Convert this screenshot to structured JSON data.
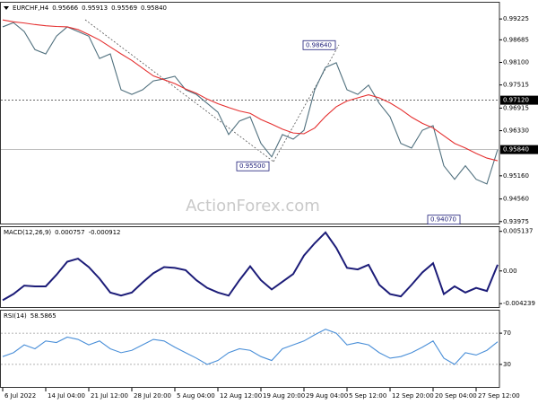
{
  "chart_data": [
    {
      "type": "line",
      "title": "EURCHF,H4",
      "header_values": [
        0.95666,
        0.95913,
        0.95569,
        {
          "value": 0.9584,
          "label": "0.95840"
        }
      ],
      "watermark": "ActionForex.com",
      "categories": [
        "6 Jul 2022",
        null,
        null,
        null,
        "14 Jul 04:00",
        null,
        null,
        null,
        "21 Jul 12:00",
        null,
        null,
        null,
        "28 Jul 20:00",
        null,
        null,
        null,
        "5 Aug 04:00",
        null,
        null,
        null,
        "12 Aug 12:00",
        null,
        null,
        null,
        "19 Aug 20:00",
        null,
        null,
        null,
        "29 Aug 04:00",
        null,
        null,
        null,
        "5 Sep 12:00",
        null,
        null,
        null,
        "12 Sep 20:00",
        null,
        null,
        null,
        "20 Sep 04:00",
        null,
        null,
        null,
        "27 Sep 12:00",
        null,
        null
      ],
      "series": [
        {
          "color": "#50707e",
          "values": [
            0.9902,
            0.9913,
            0.989,
            0.9843,
            0.9832,
            0.9878,
            0.9902,
            0.989,
            0.9878,
            0.982,
            0.9832,
            0.9739,
            0.9727,
            0.9739,
            0.9762,
            0.9767,
            0.9774,
            0.9739,
            0.9727,
            0.9704,
            0.9681,
            0.9623,
            0.9658,
            0.9669,
            0.96,
            0.9565,
            0.9623,
            0.9611,
            0.9634,
            0.9739,
            0.9797,
            0.9809,
            0.9739,
            0.9727,
            0.9751,
            0.9704,
            0.9669,
            0.96,
            0.9588,
            0.9634,
            0.9646,
            0.9542,
            0.9507,
            0.9542,
            0.9507,
            0.9495,
            0.9584
          ]
        },
        {
          "color": "#e53030",
          "values": [
            0.992,
            0.9915,
            0.9912,
            0.9908,
            0.9905,
            0.9903,
            0.9902,
            0.9895,
            0.9882,
            0.9868,
            0.985,
            0.9832,
            0.9815,
            0.9795,
            0.9775,
            0.9765,
            0.9755,
            0.9741,
            0.973,
            0.9715,
            0.9703,
            0.9693,
            0.9684,
            0.9678,
            0.9662,
            0.965,
            0.9637,
            0.9627,
            0.9625,
            0.964,
            0.967,
            0.9695,
            0.971,
            0.9718,
            0.9726,
            0.9718,
            0.9705,
            0.9688,
            0.9668,
            0.9652,
            0.964,
            0.962,
            0.96,
            0.9588,
            0.9574,
            0.9562,
            0.9555
          ]
        }
      ],
      "ylim": [
        0.939,
        0.9967
      ],
      "yticks": [
        0.99225,
        0.98685,
        {
          "value": 0.981,
          "label": "0.98100"
        },
        0.97515,
        0.96915,
        {
          "value": 0.9633,
          "label": "0.96330"
        },
        {
          "value": 0.9516,
          "label": "0.95160"
        },
        {
          "value": 0.9456,
          "label": "0.94560"
        },
        0.93975
      ],
      "hline": {
        "value": 0.9712,
        "label": "0.97120"
      },
      "last_price": {
        "value": 0.9584,
        "label": "0.95840"
      },
      "price_labels": [
        {
          "value": 0.9864,
          "label": "0.98640"
        },
        {
          "value": 0.955,
          "label": "0.95500"
        },
        {
          "value": 0.9407,
          "label": "0.94070"
        }
      ]
    },
    {
      "type": "line",
      "title": "MACD(12,26,9)",
      "header_values": [
        0.000757,
        -0.000912
      ],
      "series": [
        {
          "color": "#1c1c78",
          "values": [
            -0.0038,
            -0.003,
            -0.0019,
            -0.002,
            -0.002,
            -0.0005,
            0.0012,
            0.0016,
            0.0005,
            -0.001,
            -0.0028,
            -0.0032,
            -0.0028,
            -0.0015,
            -0.0003,
            0.0005,
            0.0004,
            0.0001,
            -0.0012,
            -0.0022,
            -0.0028,
            -0.0032,
            -0.0012,
            0.0006,
            -0.0012,
            -0.0024,
            -0.0014,
            -0.0004,
            0.002,
            0.0036,
            0.005,
            0.003,
            0.0004,
            0.0002,
            0.0008,
            -0.0018,
            -0.003,
            -0.0033,
            -0.0018,
            -0.0002,
            0.001,
            -0.003,
            -0.002,
            -0.0028,
            -0.0022,
            -0.0026,
            0.0008
          ]
        }
      ],
      "ylim": [
        -0.0048,
        0.0058
      ],
      "yticks": [
        0.005137,
        {
          "value": 0,
          "label": "0.00"
        },
        -0.004239
      ]
    },
    {
      "type": "line",
      "title": "RSI(14)",
      "header_values": [
        58.5865
      ],
      "series": [
        {
          "color": "#4a8fd8",
          "values": [
            40,
            45,
            55,
            50,
            60,
            58,
            65,
            62,
            55,
            60,
            50,
            45,
            48,
            55,
            62,
            60,
            52,
            45,
            38,
            30,
            35,
            45,
            50,
            48,
            40,
            35,
            50,
            55,
            60,
            68,
            75,
            70,
            55,
            58,
            55,
            45,
            38,
            40,
            45,
            52,
            60,
            38,
            30,
            45,
            42,
            48,
            59
          ]
        }
      ],
      "ylim": [
        0,
        100
      ],
      "yticks": [
        70,
        30
      ],
      "grid": true
    }
  ]
}
